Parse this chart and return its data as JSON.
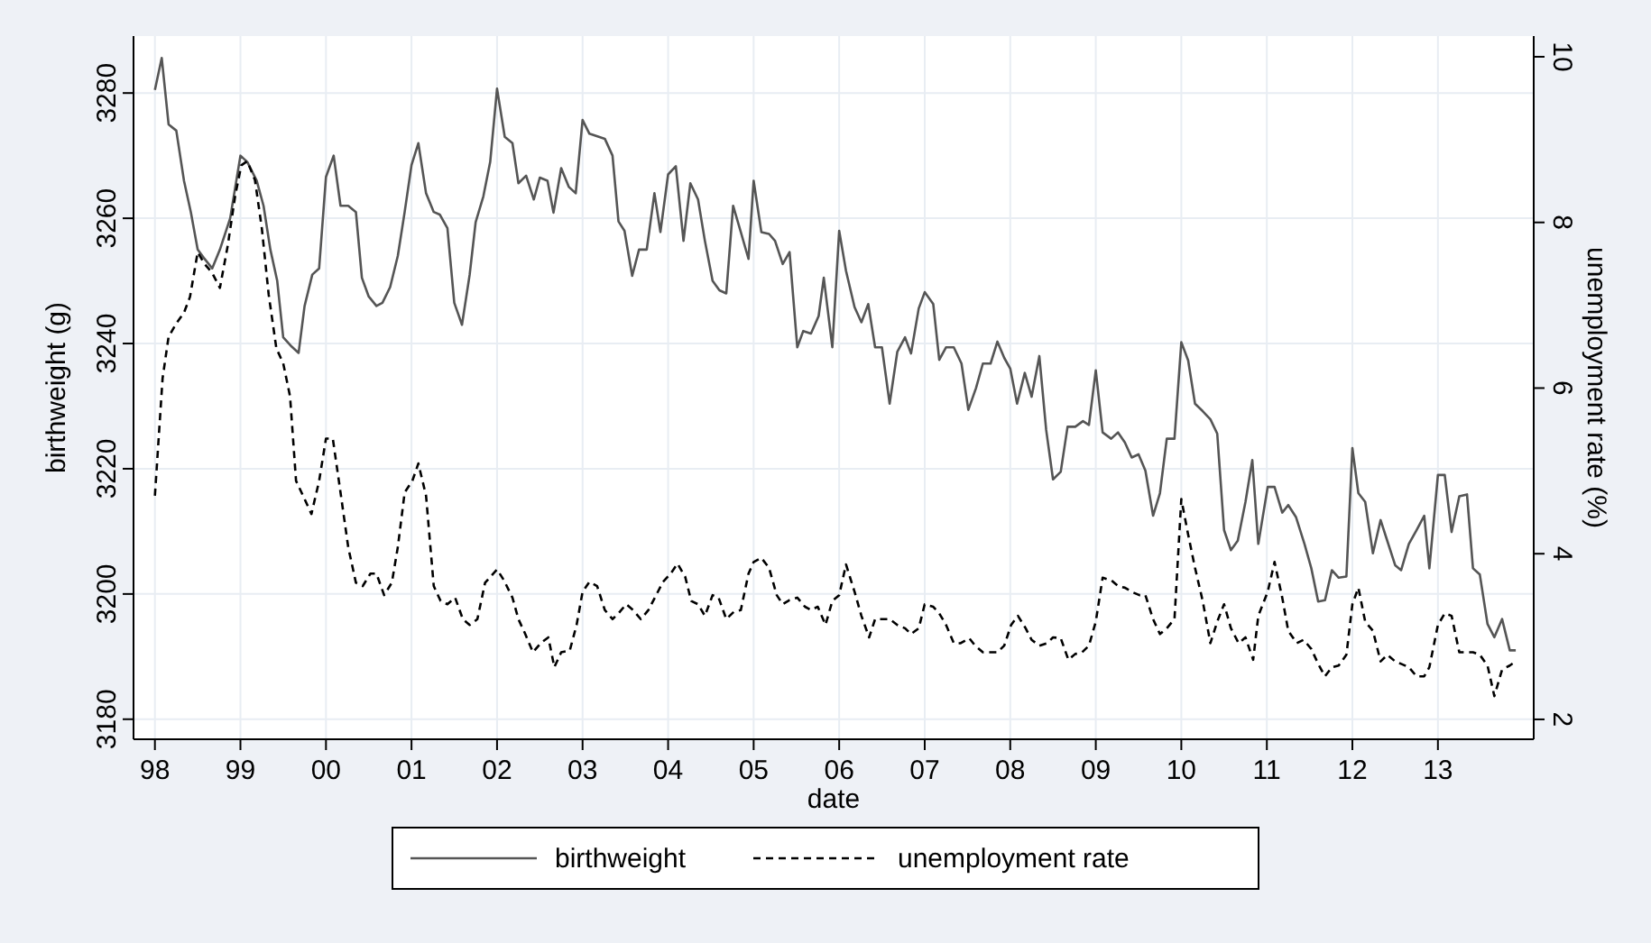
{
  "chart_data": {
    "type": "line",
    "xlabel": "date",
    "ylabel": "birthweight (g)",
    "y2label": "unemployment rate (%)",
    "xlim": [
      1997.75,
      2014.12
    ],
    "xticks": [
      {
        "value": 1998,
        "label": "98"
      },
      {
        "value": 1999,
        "label": "99"
      },
      {
        "value": 2000,
        "label": "00"
      },
      {
        "value": 2001,
        "label": "01"
      },
      {
        "value": 2002,
        "label": "02"
      },
      {
        "value": 2003,
        "label": "03"
      },
      {
        "value": 2004,
        "label": "04"
      },
      {
        "value": 2005,
        "label": "05"
      },
      {
        "value": 2006,
        "label": "06"
      },
      {
        "value": 2007,
        "label": "07"
      },
      {
        "value": 2008,
        "label": "08"
      },
      {
        "value": 2009,
        "label": "09"
      },
      {
        "value": 2010,
        "label": "10"
      },
      {
        "value": 2011,
        "label": "11"
      },
      {
        "value": 2012,
        "label": "12"
      },
      {
        "value": 2013,
        "label": "13"
      }
    ],
    "ylim": [
      3176.8,
      3289.1
    ],
    "yticks": [
      3180,
      3200,
      3220,
      3240,
      3260,
      3280
    ],
    "y2lim": [
      1.76,
      10.25
    ],
    "y2ticks": [
      2,
      4,
      6,
      8,
      10
    ],
    "grid": true,
    "legend": "bottom",
    "series": [
      {
        "name": "birthweight",
        "color": "#555555",
        "line_style": "solid",
        "x": [
          1998.0,
          1998.08,
          1998.16,
          1998.25,
          1998.34,
          1998.42,
          1998.5,
          1998.57,
          1998.67,
          1998.76,
          1998.88,
          1999.0,
          1999.08,
          1999.19,
          1999.27,
          1999.35,
          1999.43,
          1999.5,
          1999.6,
          1999.68,
          1999.75,
          1999.84,
          1999.92,
          2000.0,
          2000.09,
          2000.17,
          2000.26,
          2000.35,
          2000.42,
          2000.5,
          2000.59,
          2000.66,
          2000.75,
          2000.84,
          2000.92,
          2001.0,
          2001.08,
          2001.17,
          2001.26,
          2001.33,
          2001.42,
          2001.5,
          2001.59,
          2001.68,
          2001.75,
          2001.84,
          2001.92,
          2002.0,
          2002.09,
          2002.18,
          2002.25,
          2002.34,
          2002.43,
          2002.5,
          2002.59,
          2002.66,
          2002.75,
          2002.84,
          2002.92,
          2003.0,
          2003.08,
          2003.19,
          2003.26,
          2003.35,
          2003.42,
          2003.49,
          2003.58,
          2003.66,
          2003.75,
          2003.84,
          2003.91,
          2004.0,
          2004.09,
          2004.18,
          2004.26,
          2004.35,
          2004.43,
          2004.52,
          2004.6,
          2004.68,
          2004.76,
          2004.85,
          2004.94,
          2005.0,
          2005.09,
          2005.18,
          2005.25,
          2005.34,
          2005.42,
          2005.51,
          2005.58,
          2005.67,
          2005.76,
          2005.82,
          2005.92,
          2006.0,
          2006.08,
          2006.18,
          2006.26,
          2006.34,
          2006.42,
          2006.5,
          2006.59,
          2006.68,
          2006.77,
          2006.84,
          2006.93,
          2007.0,
          2007.1,
          2007.17,
          2007.25,
          2007.34,
          2007.43,
          2007.51,
          2007.6,
          2007.68,
          2007.77,
          2007.85,
          2007.93,
          2008.0,
          2008.08,
          2008.17,
          2008.25,
          2008.34,
          2008.42,
          2008.5,
          2008.59,
          2008.67,
          2008.76,
          2008.85,
          2008.92,
          2009.0,
          2009.08,
          2009.18,
          2009.26,
          2009.34,
          2009.42,
          2009.5,
          2009.58,
          2009.67,
          2009.75,
          2009.83,
          2009.92,
          2010.0,
          2010.08,
          2010.16,
          2010.25,
          2010.34,
          2010.42,
          2010.5,
          2010.58,
          2010.66,
          2010.75,
          2010.83,
          2010.9,
          2011.01,
          2011.09,
          2011.18,
          2011.25,
          2011.34,
          2011.44,
          2011.52,
          2011.6,
          2011.68,
          2011.76,
          2011.84,
          2011.93,
          2012.0,
          2012.07,
          2012.15,
          2012.24,
          2012.33,
          2012.41,
          2012.5,
          2012.57,
          2012.66,
          2012.75,
          2012.84,
          2012.9,
          2013.0,
          2013.08,
          2013.16,
          2013.25,
          2013.34,
          2013.41,
          2013.49,
          2013.58,
          2013.66,
          2013.75,
          2013.84,
          2013.91
        ],
        "values": [
          3280.5,
          3285.6,
          3275,
          3274,
          3266,
          3261,
          3255,
          3253.7,
          3252,
          3255,
          3260,
          3270,
          3269,
          3266,
          3262,
          3255,
          3250,
          3241,
          3239.5,
          3238.5,
          3246,
          3251,
          3252,
          3266.6,
          3270,
          3262,
          3262,
          3261,
          3250.5,
          3247.5,
          3246,
          3246.5,
          3249,
          3254,
          3261,
          3268.5,
          3272,
          3264,
          3261,
          3260.6,
          3258.4,
          3246.5,
          3243,
          3251,
          3259.4,
          3263.5,
          3269,
          3280.7,
          3273,
          3272,
          3265.6,
          3266.8,
          3263,
          3266.5,
          3266,
          3260.9,
          3268,
          3265,
          3264,
          3275.7,
          3273.5,
          3273,
          3272.7,
          3270,
          3259.5,
          3258,
          3250.8,
          3255,
          3255,
          3264,
          3257.8,
          3267,
          3268.3,
          3256.4,
          3265.6,
          3263,
          3256.4,
          3250,
          3248.5,
          3248,
          3262,
          3257.8,
          3253.5,
          3266,
          3257.8,
          3257.5,
          3256.4,
          3252.7,
          3254.6,
          3239.4,
          3242,
          3241.6,
          3244.4,
          3250.5,
          3239.4,
          3258,
          3251.6,
          3245.8,
          3243.4,
          3246.3,
          3239.4,
          3239.4,
          3230.4,
          3238.7,
          3241,
          3238.4,
          3245.6,
          3248.2,
          3246.3,
          3237.4,
          3239.4,
          3239.4,
          3236.8,
          3229.4,
          3232.9,
          3236.8,
          3236.8,
          3240.3,
          3237.7,
          3236,
          3230.4,
          3235.3,
          3231.5,
          3238,
          3226.2,
          3218.3,
          3219.5,
          3226.7,
          3226.7,
          3227.6,
          3227,
          3235.7,
          3225.8,
          3224.8,
          3225.8,
          3224.2,
          3221.8,
          3222.3,
          3219.7,
          3212.5,
          3216.1,
          3224.8,
          3224.8,
          3240.2,
          3237.3,
          3230.4,
          3229.2,
          3227.9,
          3225.6,
          3210.2,
          3207,
          3208.5,
          3214.7,
          3221.4,
          3208,
          3217.1,
          3217.1,
          3213,
          3214.2,
          3212.3,
          3208,
          3204.1,
          3198.8,
          3199,
          3203.8,
          3202.6,
          3202.8,
          3223.3,
          3216.1,
          3214.7,
          3206.5,
          3211.8,
          3208.4,
          3204.6,
          3203.8,
          3208,
          3210.2,
          3212.5,
          3204.1,
          3219,
          3219,
          3209.9,
          3215.6,
          3215.9,
          3204.1,
          3203.1,
          3195.2,
          3193.1,
          3196,
          3191,
          3191
        ]
      },
      {
        "name": "unemployment rate",
        "color": "#000000",
        "line_style": "dashed",
        "axis": "y2",
        "x": [
          1998.0,
          1998.09,
          1998.16,
          1998.25,
          1998.34,
          1998.41,
          1998.5,
          1998.58,
          1998.67,
          1998.76,
          1998.85,
          1998.94,
          1999.01,
          1999.08,
          1999.17,
          1999.25,
          1999.33,
          1999.42,
          1999.5,
          1999.58,
          1999.65,
          1999.75,
          1999.83,
          1999.92,
          2000.0,
          2000.08,
          2000.17,
          2000.26,
          2000.35,
          2000.43,
          2000.52,
          2000.59,
          2000.68,
          2000.77,
          2000.84,
          2000.92,
          2001.01,
          2001.08,
          2001.17,
          2001.26,
          2001.34,
          2001.42,
          2001.51,
          2001.6,
          2001.68,
          2001.77,
          2001.86,
          2002.0,
          2002.08,
          2002.18,
          2002.25,
          2002.33,
          2002.42,
          2002.51,
          2002.6,
          2002.67,
          2002.75,
          2002.85,
          2002.93,
          2003.0,
          2003.08,
          2003.17,
          2003.26,
          2003.35,
          2003.42,
          2003.51,
          2003.59,
          2003.68,
          2003.77,
          2003.86,
          2003.94,
          2004.03,
          2004.11,
          2004.2,
          2004.27,
          2004.35,
          2004.43,
          2004.52,
          2004.59,
          2004.68,
          2004.77,
          2004.85,
          2004.94,
          2005.0,
          2005.09,
          2005.18,
          2005.27,
          2005.34,
          2005.42,
          2005.51,
          2005.6,
          2005.67,
          2005.75,
          2005.84,
          2005.92,
          2006.0,
          2006.08,
          2006.18,
          2006.26,
          2006.35,
          2006.42,
          2006.51,
          2006.59,
          2006.68,
          2006.77,
          2006.84,
          2006.93,
          2007.0,
          2007.1,
          2007.17,
          2007.25,
          2007.34,
          2007.42,
          2007.52,
          2007.59,
          2007.68,
          2007.77,
          2007.85,
          2007.93,
          2008.01,
          2008.09,
          2008.18,
          2008.25,
          2008.34,
          2008.43,
          2008.5,
          2008.59,
          2008.68,
          2008.76,
          2008.84,
          2008.92,
          2009.0,
          2009.08,
          2009.18,
          2009.26,
          2009.34,
          2009.42,
          2009.51,
          2009.58,
          2009.67,
          2009.75,
          2009.83,
          2009.92,
          2010.0,
          2010.08,
          2010.16,
          2010.25,
          2010.34,
          2010.42,
          2010.5,
          2010.58,
          2010.67,
          2010.75,
          2010.84,
          2010.9,
          2011.01,
          2011.09,
          2011.18,
          2011.25,
          2011.35,
          2011.43,
          2011.52,
          2011.6,
          2011.68,
          2011.76,
          2011.84,
          2011.93,
          2012.0,
          2012.07,
          2012.15,
          2012.24,
          2012.33,
          2012.41,
          2012.5,
          2012.57,
          2012.66,
          2012.75,
          2012.84,
          2012.9,
          2013.0,
          2013.08,
          2013.16,
          2013.25,
          2013.34,
          2013.41,
          2013.49,
          2013.58,
          2013.66,
          2013.75,
          2013.84,
          2013.91
        ],
        "values": [
          4.7,
          6.12,
          6.62,
          6.78,
          6.91,
          7.1,
          7.64,
          7.5,
          7.39,
          7.21,
          7.71,
          8.33,
          8.69,
          8.74,
          8.51,
          7.93,
          7.13,
          6.48,
          6.3,
          5.9,
          4.88,
          4.66,
          4.48,
          4.88,
          5.39,
          5.39,
          4.74,
          4.08,
          3.65,
          3.61,
          3.76,
          3.76,
          3.5,
          3.65,
          4.08,
          4.74,
          4.88,
          5.09,
          4.7,
          3.61,
          3.43,
          3.39,
          3.47,
          3.21,
          3.14,
          3.21,
          3.65,
          3.81,
          3.68,
          3.47,
          3.21,
          3.03,
          2.81,
          2.92,
          2.99,
          2.63,
          2.81,
          2.83,
          3.14,
          3.54,
          3.66,
          3.61,
          3.32,
          3.21,
          3.28,
          3.39,
          3.32,
          3.21,
          3.32,
          3.5,
          3.66,
          3.76,
          3.88,
          3.72,
          3.43,
          3.39,
          3.25,
          3.5,
          3.47,
          3.21,
          3.3,
          3.32,
          3.76,
          3.9,
          3.95,
          3.83,
          3.5,
          3.39,
          3.44,
          3.47,
          3.36,
          3.32,
          3.36,
          3.14,
          3.43,
          3.5,
          3.87,
          3.54,
          3.25,
          2.99,
          3.21,
          3.21,
          3.21,
          3.14,
          3.1,
          3.03,
          3.1,
          3.39,
          3.36,
          3.28,
          3.14,
          2.92,
          2.92,
          2.98,
          2.89,
          2.81,
          2.81,
          2.81,
          2.89,
          3.14,
          3.25,
          3.1,
          2.96,
          2.89,
          2.92,
          2.99,
          2.98,
          2.72,
          2.79,
          2.81,
          2.89,
          3.18,
          3.71,
          3.68,
          3.61,
          3.59,
          3.54,
          3.5,
          3.5,
          3.21,
          3.03,
          3.1,
          3.21,
          4.66,
          4.23,
          3.83,
          3.43,
          2.92,
          3.18,
          3.39,
          3.1,
          2.92,
          2.99,
          2.72,
          3.25,
          3.54,
          3.9,
          3.47,
          3.07,
          2.92,
          2.96,
          2.85,
          2.67,
          2.52,
          2.63,
          2.65,
          2.78,
          3.39,
          3.59,
          3.18,
          3.07,
          2.7,
          2.78,
          2.7,
          2.67,
          2.63,
          2.52,
          2.52,
          2.63,
          3.14,
          3.28,
          3.25,
          2.81,
          2.81,
          2.81,
          2.78,
          2.65,
          2.28,
          2.6,
          2.65,
          2.7
        ]
      }
    ]
  }
}
